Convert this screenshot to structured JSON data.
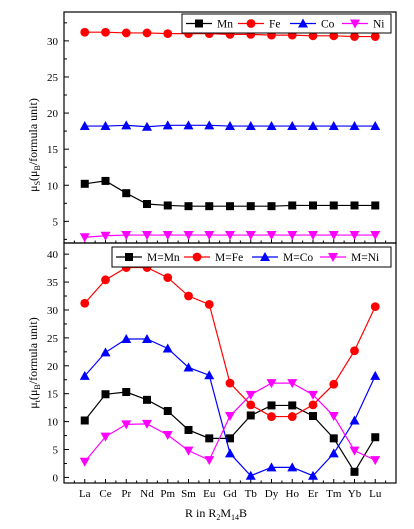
{
  "figure": {
    "xlabel_parts": [
      "R in R",
      "2",
      "M",
      "14",
      "B"
    ],
    "top_ylabel_parts": [
      "μ",
      "S",
      "(μ",
      "B",
      "/formula unit)"
    ],
    "bottom_ylabel_parts": [
      "μ",
      "t",
      "(μ",
      "B",
      "/formula unit)"
    ]
  },
  "chart_data": [
    {
      "type": "line",
      "panel": "top",
      "x": [
        "La",
        "Ce",
        "Pr",
        "Nd",
        "Pm",
        "Sm",
        "Eu",
        "Gd",
        "Tb",
        "Dy",
        "Ho",
        "Er",
        "Tm",
        "Yb",
        "Lu"
      ],
      "ylim": [
        2,
        34
      ],
      "yticks": [
        5,
        10,
        15,
        20,
        25,
        30
      ],
      "grid": false,
      "legend_position": "top-right",
      "series": [
        {
          "name": "Mn",
          "color": "#000000",
          "marker": "square",
          "values": [
            10.2,
            10.6,
            8.9,
            7.4,
            7.2,
            7.1,
            7.1,
            7.1,
            7.1,
            7.1,
            7.2,
            7.2,
            7.2,
            7.2,
            7.2
          ]
        },
        {
          "name": "Fe",
          "color": "#ff0000",
          "marker": "circle",
          "values": [
            31.2,
            31.2,
            31.1,
            31.1,
            31.0,
            31.0,
            31.0,
            30.9,
            30.9,
            30.8,
            30.8,
            30.7,
            30.7,
            30.6,
            30.6
          ]
        },
        {
          "name": "Co",
          "color": "#0000ff",
          "marker": "triangle-up",
          "values": [
            18.2,
            18.2,
            18.3,
            18.1,
            18.3,
            18.3,
            18.3,
            18.2,
            18.2,
            18.2,
            18.2,
            18.2,
            18.2,
            18.2,
            18.2
          ]
        },
        {
          "name": "Ni",
          "color": "#ff00ff",
          "marker": "triangle-down",
          "values": [
            2.8,
            3.0,
            3.1,
            3.1,
            3.1,
            3.1,
            3.1,
            3.1,
            3.1,
            3.1,
            3.1,
            3.1,
            3.1,
            3.1,
            3.1
          ]
        }
      ]
    },
    {
      "type": "line",
      "panel": "bottom",
      "x": [
        "La",
        "Ce",
        "Pr",
        "Nd",
        "Pm",
        "Sm",
        "Eu",
        "Gd",
        "Tb",
        "Dy",
        "Ho",
        "Er",
        "Tm",
        "Yb",
        "Lu"
      ],
      "ylim": [
        -1,
        42
      ],
      "yticks": [
        0,
        5,
        10,
        15,
        20,
        25,
        30,
        35,
        40
      ],
      "grid": false,
      "legend_position": "top",
      "series": [
        {
          "name": "M=Mn",
          "color": "#000000",
          "marker": "square",
          "values": [
            10.2,
            14.9,
            15.3,
            13.9,
            11.9,
            8.5,
            7.0,
            7.0,
            11.1,
            12.9,
            12.9,
            11.0,
            7.0,
            1.0,
            7.2
          ]
        },
        {
          "name": "M=Fe",
          "color": "#ff0000",
          "marker": "circle",
          "values": [
            31.2,
            35.4,
            37.6,
            37.6,
            35.8,
            32.5,
            31.0,
            16.9,
            13.0,
            10.9,
            10.9,
            13.0,
            16.7,
            22.7,
            30.6
          ]
        },
        {
          "name": "M=Co",
          "color": "#0000ff",
          "marker": "triangle-up",
          "values": [
            18.2,
            22.4,
            24.8,
            24.8,
            23.1,
            19.7,
            18.3,
            4.3,
            0.3,
            1.8,
            1.8,
            0.3,
            4.3,
            10.2,
            18.2
          ]
        },
        {
          "name": "M=Ni",
          "color": "#ff00ff",
          "marker": "triangle-down",
          "values": [
            2.8,
            7.3,
            9.5,
            9.6,
            7.6,
            4.8,
            3.1,
            11.0,
            14.8,
            16.9,
            16.9,
            14.8,
            11.0,
            4.8,
            3.1
          ]
        }
      ]
    }
  ]
}
